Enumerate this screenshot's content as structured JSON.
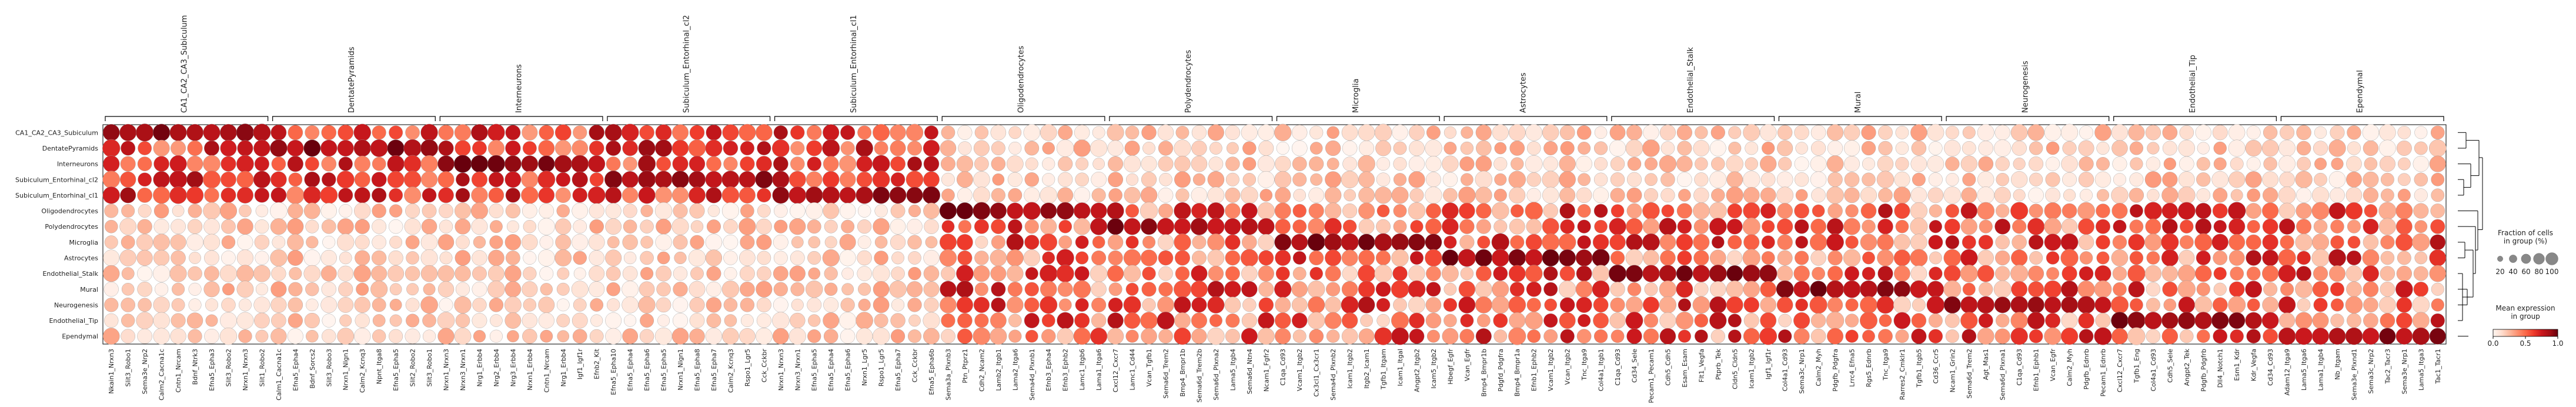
{
  "chart_data": {
    "type": "dotplot",
    "rows": [
      "CA1_CA2_CA3_Subiculum",
      "DentatePyramids",
      "Interneurons",
      "Subiculum_Entorhinal_cl2",
      "Subiculum_Entorhinal_cl1",
      "Oligodendrocytes",
      "Polydendrocytes",
      "Microglia",
      "Astrocytes",
      "Endothelial_Stalk",
      "Mural",
      "Neurogenesis",
      "Endothelial_Tip",
      "Ependymal"
    ],
    "groups": [
      {
        "name": "CA1_CA2_CA3_Subiculum",
        "genes": [
          "Nkain1_Nrxn3",
          "Slit3_Robo1",
          "Sema3e_Nrp2",
          "Calm2_Cacna1c",
          "Cntn1_Nrcam",
          "Bdnf_Ntrk3",
          "Efna5_Epha3",
          "Slit3_Robo2",
          "Nrxn1_Nrxn3",
          "Slit1_Robo2"
        ]
      },
      {
        "name": "DentatePyramids",
        "genes": [
          "Calm1_Cacna1c",
          "Efna5_Epha4",
          "Bdnf_Sorcs2",
          "Slit3_Robo3",
          "Nrxn1_Nlgn1",
          "Calm2_Kcnq3",
          "Npnt_Itga8",
          "Efna5_Epha5",
          "Slit2_Robo2",
          "Slit3_Robo1"
        ]
      },
      {
        "name": "Interneurons",
        "genes": [
          "Nrxn1_Nrxn3",
          "Nrxn3_Nrxn1",
          "Nrg1_Erbb4",
          "Nrg2_Erbb4",
          "Nrg3_Erbb4",
          "Nrxn1_Erbb4",
          "Cntn1_Nrcam",
          "Nrg1_Erbb4",
          "Igf1_Igf1r",
          "Efnb2_Kit"
        ]
      },
      {
        "name": "Subiculum_Entorhinal_cl2",
        "genes": [
          "Efna5_Epha10",
          "Efna5_Epha4",
          "Efna5_Epha6",
          "Efna5_Epha5",
          "Nrxn1_Nlgn1",
          "Efna5_Epha8",
          "Efna5_Epha7",
          "Calm2_Kcnq3",
          "Rspo1_Lgr5",
          "Cck_Cckbr"
        ]
      },
      {
        "name": "Subiculum_Entorhinal_cl1",
        "genes": [
          "Nrxn1_Nrxn3",
          "Nrxn3_Nrxn1",
          "Efna5_Epha5",
          "Efna5_Epha4",
          "Efna5_Epha6",
          "Nrxn1_Lgr5",
          "Rspo1_Lgr5",
          "Efna5_Epha7",
          "Cck_Cckbr",
          "Efna5_Epha6b"
        ]
      },
      {
        "name": "Oligodendrocytes",
        "genes": [
          "Sema3a_Plxnb3",
          "Ptn_Ptprz1",
          "Cdh2_Ncam2",
          "Lamb2_Itgb1",
          "Lama2_Itga6",
          "Sema4d_Plxnb1",
          "Efnb3_Epha4",
          "Efnb3_Ephb2",
          "Lamc1_Itgb6",
          "Lama1_Itga6"
        ]
      },
      {
        "name": "Polydendrocytes",
        "genes": [
          "Cxcl12_Cxcr7",
          "Lamc1_Cd44",
          "Vcan_Tgfb1",
          "Sema6d_Trem2",
          "Bmp4_Bmpr1b",
          "Sema6d_Trem2b",
          "Sema6d_Plxna2",
          "Lama5_Itgb4",
          "Sema6d_Ntn4",
          "Ncam1_Fgfr2"
        ]
      },
      {
        "name": "Microglia",
        "genes": [
          "C1qa_Cd93",
          "Vcam1_Itgb2",
          "Cx3cl1_Cx3cr1",
          "Sema4d_Plxnb2",
          "Icam1_Itgb2",
          "Itgb2_Icam1",
          "Tgfb1_Itgam",
          "Icam1_Itgal",
          "Angpt2_Itgb2",
          "Icam5_Itgb2"
        ]
      },
      {
        "name": "Astrocytes",
        "genes": [
          "Hbegf_Egfr",
          "Vcan_Egfr",
          "Bmp4_Bmpr1b",
          "Pdgfd_Pdgfra",
          "Bmp4_Bmpr1a",
          "Efnb1_Ephb2",
          "Vcam1_Itgb2",
          "Vcan_Itgb2",
          "Tnc_Itga9",
          "Col4a1_Itgb1"
        ]
      },
      {
        "name": "Endothelial_Stalk",
        "genes": [
          "C1qa_Cd93",
          "Cd34_Sele",
          "Pecam1_Pecam1",
          "Cdh5_Cdh5",
          "Esam_Esam",
          "Flt1_Vegfa",
          "Ptprb_Tek",
          "Cldn5_Cldn5",
          "Icam1_Itgb2",
          "Igf1_Igf1r"
        ]
      },
      {
        "name": "Mural",
        "genes": [
          "Col4a1_Cd93",
          "Sema3c_Nrp1",
          "Calm2_Myh",
          "Pdgfb_Pdgfra",
          "Lrrc4_Efna5",
          "Rgs5_Ednrb",
          "Tnc_Itga9",
          "Rarres2_Cmklr1",
          "Tgfb1_Itgb5",
          "Cd36_Ccr5"
        ]
      },
      {
        "name": "Neurogenesis",
        "genes": [
          "Ncam1_Grin2",
          "Sema6d_Trem2",
          "Agt_Mas1",
          "Sema6d_Plxna1",
          "C1qa_Cd93",
          "Efnb1_Ephb1",
          "Vcan_Egfr",
          "Calm2_Myh",
          "Pdgfb_Ednrb",
          "Pecam1_Ednrb"
        ]
      },
      {
        "name": "Endothelial_Tip",
        "genes": [
          "Cxcl12_Cxcr7",
          "Tgfb1_Eng",
          "Col4a1_Cd93",
          "Cdh5_Sele",
          "Angpt2_Tek",
          "Pdgfb_Pdgfrb",
          "Dll4_Notch1",
          "Esm1_Kdr",
          "Kdr_Vegfa",
          "Cd34_Cd93"
        ]
      },
      {
        "name": "Ependymal",
        "genes": [
          "Adam12_Itga9",
          "Lama5_Itga6",
          "Lama1_Itgb4",
          "Nb_Itgam",
          "Sema3e_Plxnd1",
          "Sema3c_Nrp2",
          "Tac2_Tacr3",
          "Sema3e_Nrp1",
          "Lama5_Itga3",
          "Tac1_Tacr1"
        ]
      }
    ],
    "cluster_colors": {
      "Oligodendrocytes": "#67000d",
      "Polydendrocytes": "#cb181d",
      "Microglia": "#a50f15"
    },
    "colorscale": {
      "name": "Reds",
      "low": "#fff5f0",
      "high": "#67000d"
    },
    "legend_size": {
      "title": "Fraction of cells\nin group (%)",
      "ticks": [
        20,
        40,
        60,
        80,
        100
      ]
    },
    "legend_color": {
      "title": "Mean expression\nin group",
      "ticks": [
        0.0,
        0.5,
        1.0
      ]
    },
    "dendrogram": true
  }
}
